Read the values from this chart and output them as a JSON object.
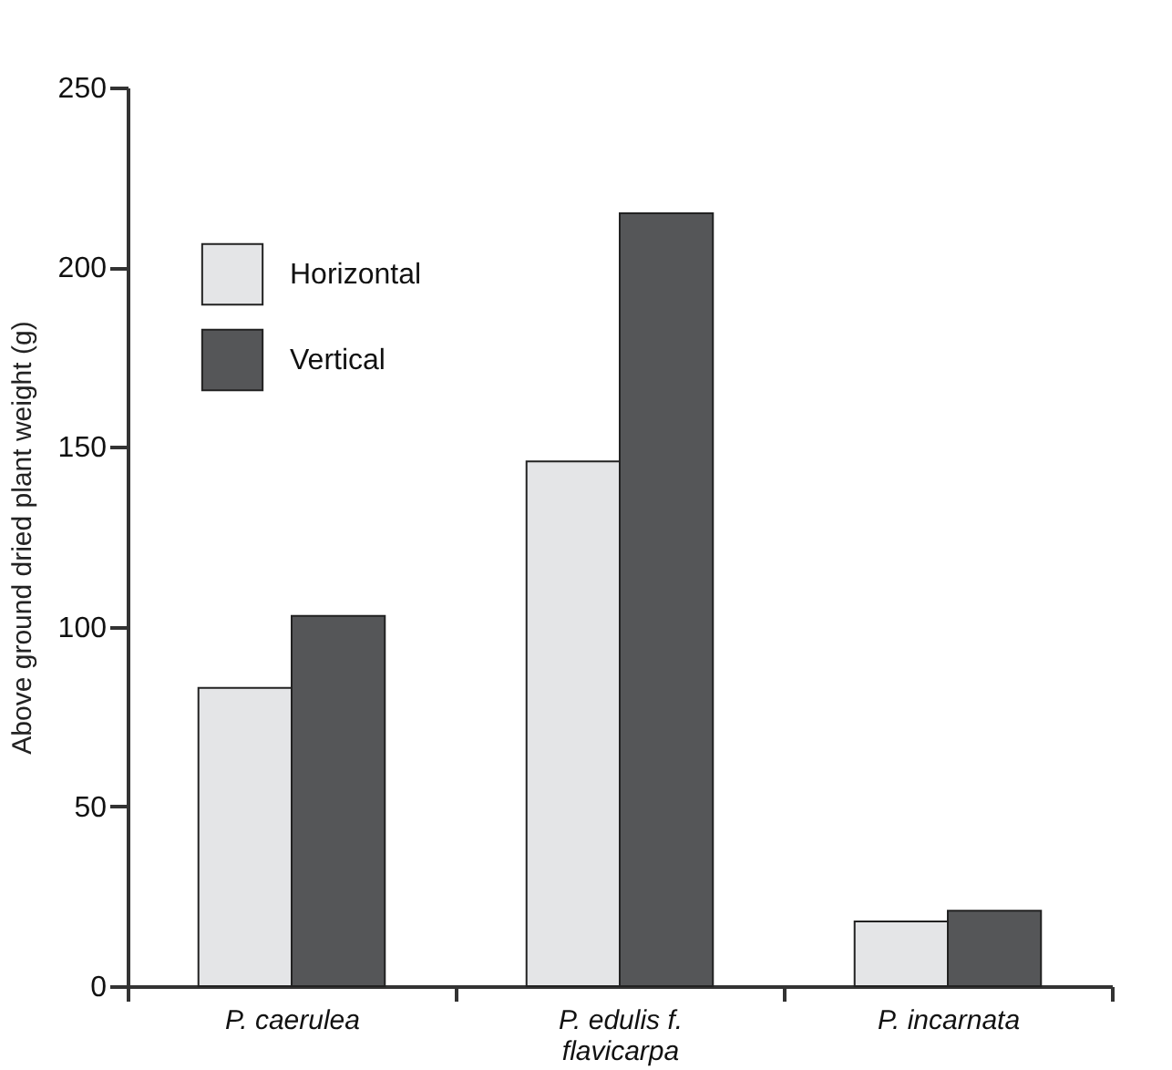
{
  "chart_data": {
    "type": "bar",
    "ylabel": "Above ground dried plant weight (g)",
    "categories": [
      "P. caerulea",
      "P. edulis f. flavicarpa",
      "P. incarnata"
    ],
    "series": [
      {
        "name": "Horizontal",
        "color": "#e4e5e7",
        "values": [
          83,
          146,
          18
        ]
      },
      {
        "name": "Vertical",
        "color": "#555658",
        "values": [
          103,
          215,
          21
        ]
      }
    ],
    "ylim": [
      0,
      250
    ],
    "yticks": [
      0,
      50,
      100,
      150,
      200,
      250
    ],
    "grid": false,
    "legend": "top left"
  }
}
